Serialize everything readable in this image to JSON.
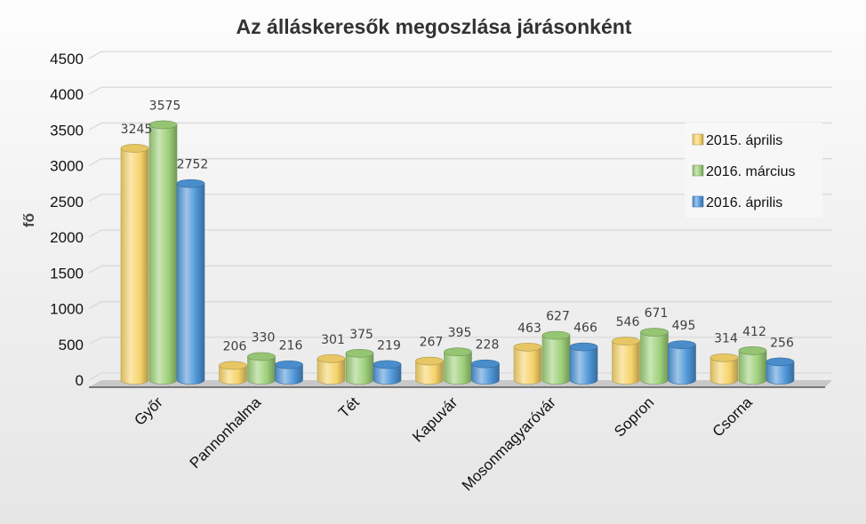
{
  "chart_data": {
    "type": "bar",
    "title": "Az álláskeresők megoszlása járásonként",
    "xlabel": "",
    "ylabel": "fő",
    "ylim": [
      0,
      4500
    ],
    "yticks": [
      "0",
      "500",
      "1000",
      "1500",
      "2000",
      "2500",
      "3000",
      "3500",
      "4000",
      "4500"
    ],
    "categories": [
      "Győr",
      "Pannonhalma",
      "Tét",
      "Kapuvár",
      "Mosonmagyaróvár",
      "Sopron",
      "Csorna"
    ],
    "series": [
      {
        "name": "2015. április",
        "values": [
          3245,
          206,
          301,
          267,
          463,
          546,
          314
        ],
        "color": "#f6d36a"
      },
      {
        "name": "2016. március",
        "values": [
          3575,
          330,
          375,
          395,
          627,
          671,
          412
        ],
        "color": "#9ed07a"
      },
      {
        "name": "2016. április",
        "values": [
          2752,
          216,
          219,
          228,
          466,
          495,
          256
        ],
        "color": "#4e96d8"
      }
    ],
    "grid": true,
    "legend_position": "right",
    "style": "3d-cylinder"
  }
}
